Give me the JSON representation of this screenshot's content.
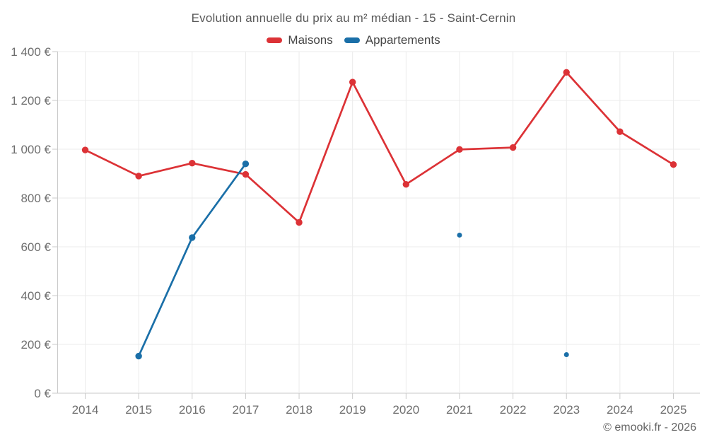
{
  "header": {
    "title": "Evolution annuelle du prix au m² médian - 15 - Saint-Cernin",
    "legend": [
      {
        "label": "Maisons",
        "color": "#dc3236"
      },
      {
        "label": "Appartements",
        "color": "#1a6fa8"
      }
    ]
  },
  "footer": {
    "copyright": "© emooki.fr - 2026"
  },
  "chart_data": {
    "type": "line",
    "title": "Evolution annuelle du prix au m² médian - 15 - Saint-Cernin",
    "x": [
      "2014",
      "2015",
      "2016",
      "2017",
      "2018",
      "2019",
      "2020",
      "2021",
      "2022",
      "2023",
      "2024",
      "2025"
    ],
    "series": [
      {
        "name": "Maisons",
        "color": "#dc3236",
        "values": [
          997,
          890,
          943,
          897,
          700,
          1275,
          856,
          999,
          1007,
          1315,
          1072,
          937
        ]
      },
      {
        "name": "Appartements",
        "color": "#1a6fa8",
        "values": [
          null,
          152,
          638,
          940,
          null,
          null,
          null,
          648,
          null,
          158,
          null,
          null
        ]
      }
    ],
    "ylim": [
      0,
      1400
    ],
    "ytick_step": 200,
    "y_tick_labels": [
      "0 €",
      "200 €",
      "400 €",
      "600 €",
      "800 €",
      "1 000 €",
      "1 200 €",
      "1 400 €"
    ],
    "y_unit": "€",
    "grid": true,
    "legend_position": "top",
    "colors": {
      "grid": "#ebebeb",
      "axis": "#c9c9c9",
      "tick_text": "#6e6e6e"
    }
  }
}
